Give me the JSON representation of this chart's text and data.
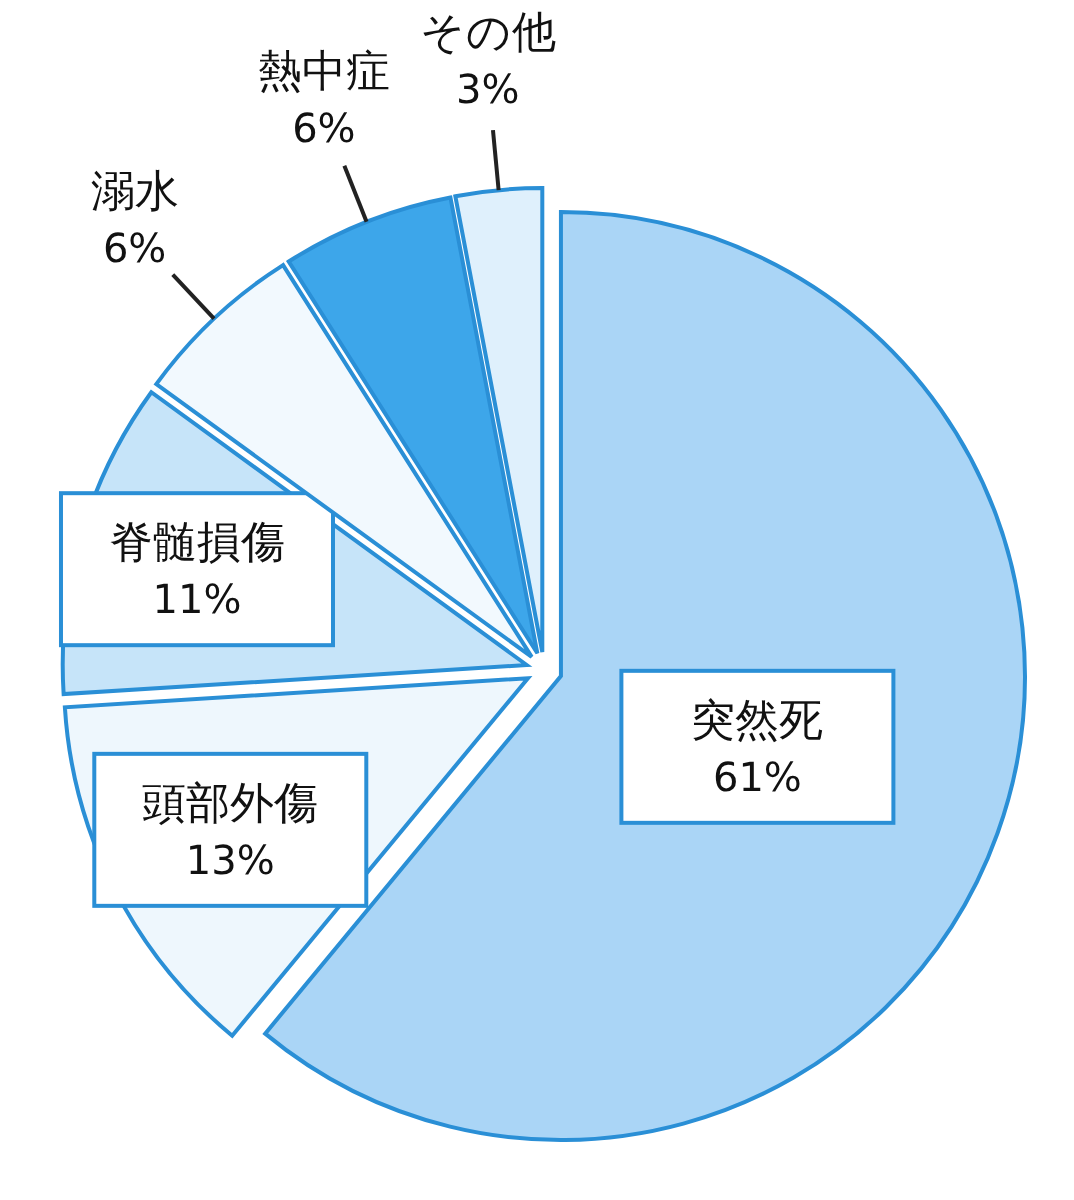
{
  "chart_data": {
    "type": "pie",
    "categories": [
      "突然死",
      "頭部外傷",
      "脊髄損傷",
      "溺水",
      "熱中症",
      "その他"
    ],
    "values": [
      61,
      13,
      11,
      6,
      6,
      3
    ],
    "colors": [
      "#aad5f6",
      "#eef7fd",
      "#c6e4f9",
      "#f2f9fe",
      "#3da6ea",
      "#dff0fc"
    ],
    "value_labels": [
      "61%",
      "13%",
      "11%",
      "6%",
      "6%",
      "3%"
    ],
    "legend": false
  }
}
